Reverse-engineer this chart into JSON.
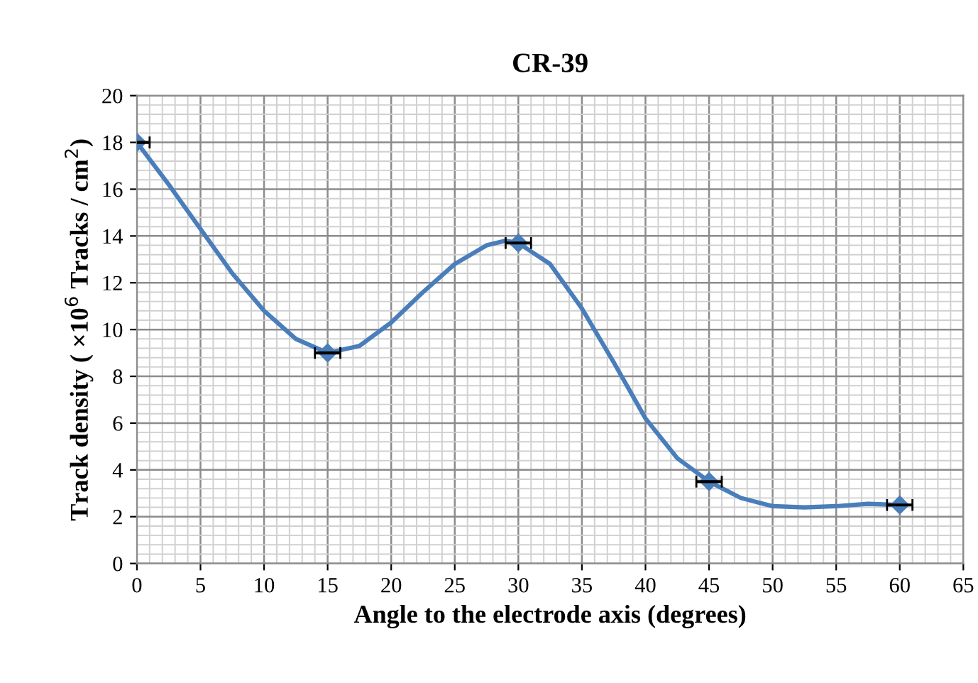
{
  "chart_data": {
    "type": "line",
    "title": "CR-39",
    "xlabel": "Angle to the electrode axis (degrees)",
    "ylabel": "Track density ( ×10$^{6}$ Tracks / cm$^{2}$)",
    "series": [
      {
        "marker": "none",
        "color": "#4a7ebb",
        "x": [
          0,
          2.5,
          5,
          7.5,
          10,
          12.5,
          15,
          17.5,
          20,
          22.5,
          25,
          27.5,
          29,
          30,
          32.5,
          35,
          37.5,
          40,
          42.5,
          45,
          47.5,
          50,
          52.5,
          55,
          57.5,
          60
        ],
        "values": [
          18,
          16.2,
          14.3,
          12.4,
          10.8,
          9.6,
          9.0,
          9.3,
          10.3,
          11.6,
          12.8,
          13.6,
          13.8,
          13.7,
          12.8,
          10.9,
          8.6,
          6.2,
          4.5,
          3.5,
          2.8,
          2.45,
          2.4,
          2.45,
          2.55,
          2.5
        ]
      },
      {
        "type": "scatter",
        "marker": "diamond",
        "color": "#4a7ebb",
        "x": [
          0,
          15,
          30,
          45,
          60
        ],
        "values": [
          18,
          9,
          13.7,
          3.5,
          2.5
        ],
        "xerrors": [
          1,
          1,
          1,
          1,
          1
        ]
      }
    ],
    "xlim": [
      0,
      65
    ],
    "xticks": [
      0,
      5,
      10,
      15,
      20,
      25,
      30,
      35,
      40,
      45,
      50,
      55,
      60,
      65
    ],
    "ylim": [
      0,
      20
    ],
    "yticks": [
      0,
      2,
      4,
      6,
      8,
      10,
      12,
      14,
      16,
      18,
      20
    ],
    "grid": true,
    "line_style": "solid"
  }
}
